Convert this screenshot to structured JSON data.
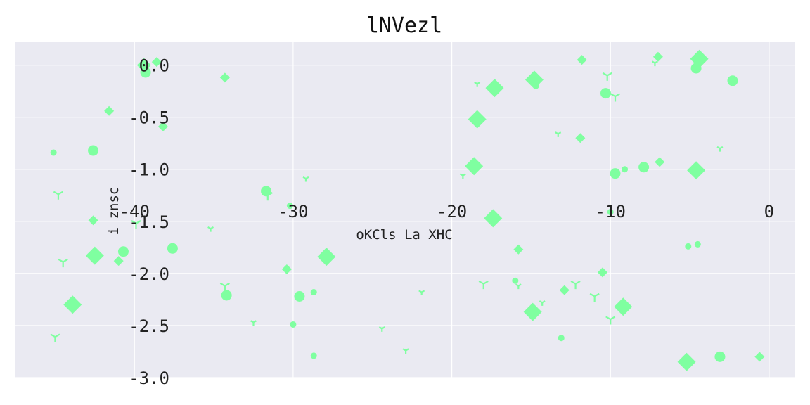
{
  "chart_data": {
    "type": "scatter",
    "title": "lNVezl",
    "xlabel": "oKCls La XHC",
    "ylabel": "i znsc",
    "xlim": [
      -47.5,
      1.6
    ],
    "ylim": [
      -3.0,
      0.22
    ],
    "xticks": [
      -40,
      -30,
      -20,
      -10,
      0
    ],
    "yticks": [
      0.0,
      -0.5,
      -1.0,
      -1.5,
      -2.0,
      -2.5,
      -3.0
    ],
    "grid": true,
    "background": "#eaeaf2",
    "marker_color": "#7fffa0",
    "series": [
      {
        "marker": "diamond",
        "points": [
          [
            -39.4,
            0.0,
            "M"
          ],
          [
            -38.6,
            0.03,
            "S"
          ],
          [
            -34.3,
            -0.12,
            "S"
          ],
          [
            -11.8,
            0.05,
            "S"
          ],
          [
            -7.0,
            0.08,
            "S"
          ],
          [
            -4.4,
            0.06,
            "L"
          ],
          [
            -14.8,
            -0.14,
            "L"
          ],
          [
            -17.3,
            -0.22,
            "L"
          ],
          [
            -18.4,
            -0.52,
            "L"
          ],
          [
            -41.6,
            -0.44,
            "S"
          ],
          [
            -38.2,
            -0.59,
            "S"
          ],
          [
            -11.9,
            -0.7,
            "S"
          ],
          [
            -18.6,
            -0.97,
            "L"
          ],
          [
            -6.9,
            -0.93,
            "S"
          ],
          [
            -4.6,
            -1.01,
            "L"
          ],
          [
            -42.6,
            -1.49,
            "S"
          ],
          [
            -17.4,
            -1.47,
            "L"
          ],
          [
            -15.8,
            -1.77,
            "S"
          ],
          [
            -42.5,
            -1.83,
            "L"
          ],
          [
            -41.0,
            -1.88,
            "S"
          ],
          [
            -27.9,
            -1.84,
            "L"
          ],
          [
            -30.4,
            -1.96,
            "S"
          ],
          [
            -10.5,
            -1.99,
            "S"
          ],
          [
            -43.9,
            -2.3,
            "L"
          ],
          [
            -12.9,
            -2.16,
            "S"
          ],
          [
            -9.2,
            -2.32,
            "L"
          ],
          [
            -14.9,
            -2.37,
            "L"
          ],
          [
            -5.2,
            -2.85,
            "L"
          ],
          [
            -0.6,
            -2.8,
            "S"
          ]
        ]
      },
      {
        "marker": "circle",
        "points": [
          [
            -39.3,
            -0.07,
            "M"
          ],
          [
            -4.6,
            -0.03,
            "M"
          ],
          [
            -2.3,
            -0.15,
            "M"
          ],
          [
            -14.7,
            -0.2,
            "S"
          ],
          [
            -10.3,
            -0.27,
            "M"
          ],
          [
            -45.1,
            -0.84,
            "S"
          ],
          [
            -42.6,
            -0.82,
            "M"
          ],
          [
            -9.7,
            -1.04,
            "M"
          ],
          [
            -9.1,
            -1.0,
            "S"
          ],
          [
            -7.9,
            -0.98,
            "M"
          ],
          [
            -31.7,
            -1.21,
            "M"
          ],
          [
            -30.2,
            -1.35,
            "S"
          ],
          [
            -10.0,
            -1.41,
            "S"
          ],
          [
            -40.7,
            -1.79,
            "M"
          ],
          [
            -37.6,
            -1.76,
            "M"
          ],
          [
            -5.1,
            -1.74,
            "S"
          ],
          [
            -4.5,
            -1.72,
            "S"
          ],
          [
            -16.0,
            -2.07,
            "S"
          ],
          [
            -34.2,
            -2.21,
            "M"
          ],
          [
            -29.6,
            -2.22,
            "M"
          ],
          [
            -28.7,
            -2.18,
            "S"
          ],
          [
            -30.0,
            -2.49,
            "S"
          ],
          [
            -13.1,
            -2.62,
            "S"
          ],
          [
            -3.1,
            -2.8,
            "M"
          ],
          [
            -28.7,
            -2.79,
            "S"
          ]
        ]
      },
      {
        "marker": "tri_down",
        "points": [
          [
            -7.2,
            0.02,
            "S"
          ],
          [
            -10.2,
            -0.1,
            "M"
          ],
          [
            -18.4,
            -0.18,
            "S"
          ],
          [
            -9.7,
            -0.3,
            "M"
          ],
          [
            -13.3,
            -0.66,
            "S"
          ],
          [
            -3.1,
            -0.8,
            "S"
          ],
          [
            -29.2,
            -1.09,
            "S"
          ],
          [
            -19.3,
            -1.06,
            "S"
          ],
          [
            -44.8,
            -1.24,
            "M"
          ],
          [
            -31.6,
            -1.25,
            "M"
          ],
          [
            -39.9,
            -1.52,
            "M"
          ],
          [
            -35.2,
            -1.57,
            "S"
          ],
          [
            -44.5,
            -1.89,
            "M"
          ],
          [
            -34.3,
            -2.12,
            "M"
          ],
          [
            -32.5,
            -2.47,
            "S"
          ],
          [
            -21.9,
            -2.18,
            "S"
          ],
          [
            -18.0,
            -2.1,
            "M"
          ],
          [
            -15.8,
            -2.12,
            "S"
          ],
          [
            -14.3,
            -2.28,
            "S"
          ],
          [
            -12.2,
            -2.1,
            "M"
          ],
          [
            -11.0,
            -2.22,
            "M"
          ],
          [
            -10.0,
            -2.44,
            "M"
          ],
          [
            -24.4,
            -2.53,
            "S"
          ],
          [
            -22.9,
            -2.74,
            "S"
          ],
          [
            -45.0,
            -2.61,
            "M"
          ]
        ]
      }
    ]
  }
}
